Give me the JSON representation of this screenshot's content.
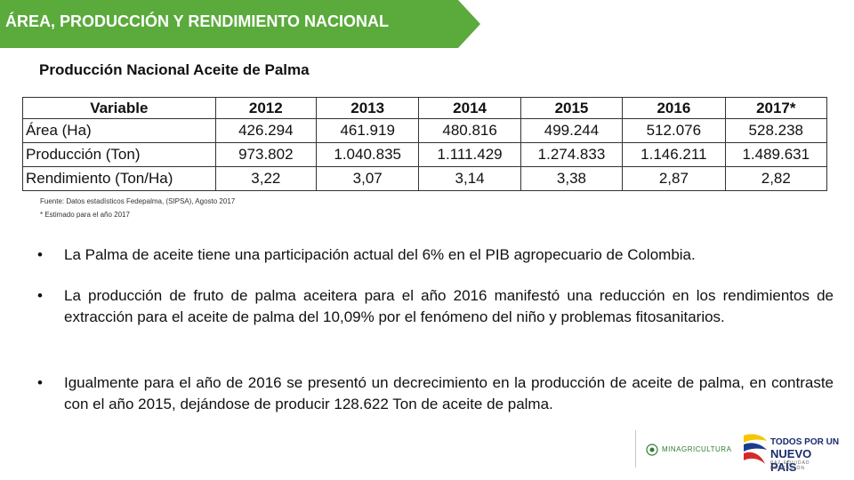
{
  "header": {
    "title": "ÁREA, PRODUCCIÓN Y RENDIMIENTO NACIONAL",
    "banner_color": "#5aaa3c"
  },
  "section": {
    "subtitle": "Producción Nacional Aceite de Palma"
  },
  "table": {
    "headers": [
      "Variable",
      "2012",
      "2013",
      "2014",
      "2015",
      "2016",
      "2017*"
    ],
    "rows": [
      [
        "Área (Ha)",
        "426.294",
        "461.919",
        "480.816",
        "499.244",
        "512.076",
        "528.238"
      ],
      [
        "Producción (Ton)",
        "973.802",
        "1.040.835",
        "1.111.429",
        "1.274.833",
        "1.146.211",
        "1.489.631"
      ],
      [
        "Rendimiento (Ton/Ha)",
        "3,22",
        "3,07",
        "3,14",
        "3,38",
        "2,87",
        "2,82"
      ]
    ]
  },
  "notes": {
    "source": "Fuente: Datos estadísticos Fedepalma, (SIPSA), Agosto 2017",
    "estimate": "* Estimado para el año 2017"
  },
  "bullets": [
    "La Palma de aceite tiene una participación actual del 6% en el PIB agropecuario de Colombia.",
    "La producción de fruto de palma aceitera para el año 2016 manifestó una reducción en los rendimientos de extracción para el aceite de palma del 10,09% por el fenómeno del niño y problemas fitosanitarios.",
    "Igualmente para el año de 2016 se presentó un decrecimiento en la producción de aceite de palma, en contraste con el año 2015, dejándose de producir 128.622 Ton de aceite de palma."
  ],
  "bullet_symbol": "•",
  "footer": {
    "ministry_logo_text": "MINAGRICULTURA",
    "gov_logo_line1": "TODOS POR UN",
    "gov_logo_line2": "NUEVO PAÍS",
    "gov_logo_line3": "PAZ EQUIDAD EDUCACIÓN"
  }
}
